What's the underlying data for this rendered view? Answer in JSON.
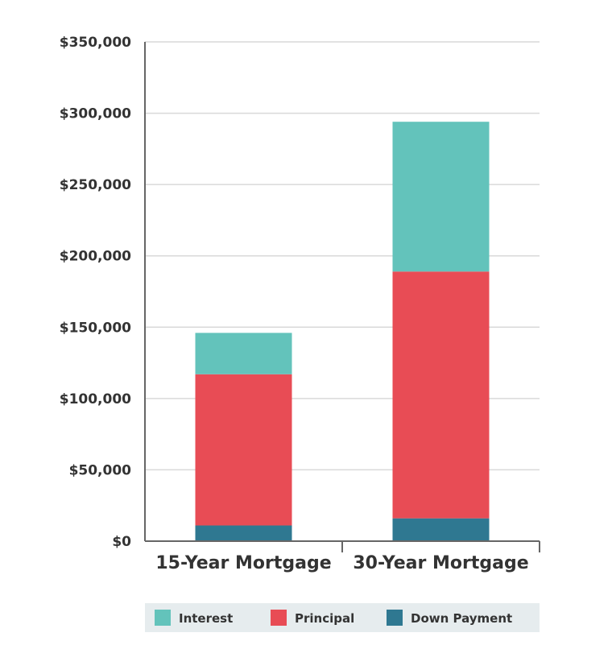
{
  "chart_data": {
    "type": "bar",
    "stacked": true,
    "categories": [
      "15-Year Mortgage",
      "30-Year Mortgage"
    ],
    "series": [
      {
        "name": "Down Payment",
        "values": [
          11000,
          16000
        ],
        "color": "#2f7891"
      },
      {
        "name": "Principal",
        "values": [
          106000,
          173000
        ],
        "color": "#e84c55"
      },
      {
        "name": "Interest",
        "values": [
          29000,
          105000
        ],
        "color": "#63c3bb"
      }
    ],
    "ylim": [
      0,
      350000
    ],
    "yticks": [
      0,
      50000,
      100000,
      150000,
      200000,
      250000,
      300000,
      350000
    ],
    "ytick_labels": [
      "$0",
      "$50,000",
      "$100,000",
      "$150,000",
      "$200,000",
      "$250,000",
      "$300,000",
      "$350,000"
    ],
    "legend_order": [
      "Interest",
      "Principal",
      "Down Payment"
    ],
    "legend_position": "bottom",
    "grid": true
  }
}
